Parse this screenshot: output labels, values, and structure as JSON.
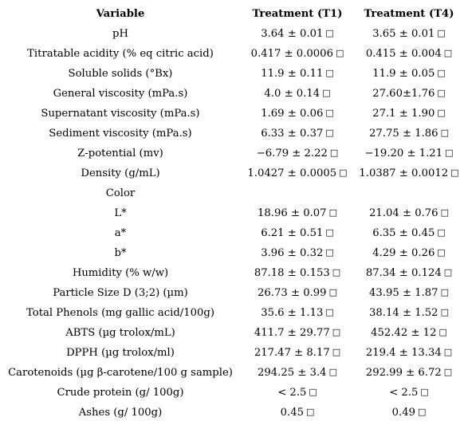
{
  "header": {
    "variable": "Variable",
    "t1": "Treatment (T1)",
    "t4": "Treatment (T4)"
  },
  "missing_glyph": "□",
  "rows": [
    {
      "variable": "pH",
      "t1": "3.64 ± 0.01",
      "t4": "3.65 ± 0.01",
      "t1_glyph": "□",
      "t4_glyph": "□"
    },
    {
      "variable": "Titratable acidity (% eq citric acid)",
      "t1": "0.417 ± 0.0006",
      "t4": "0.415 ± 0.004",
      "t1_glyph": "□",
      "t4_glyph": "□"
    },
    {
      "variable": "Soluble solids (°Bx)",
      "t1": "11.9 ± 0.11",
      "t4": "11.9 ± 0.05",
      "t1_glyph": "□",
      "t4_glyph": "□"
    },
    {
      "variable": "General viscosity (mPa.s)",
      "t1": "4.0 ± 0.14",
      "t4": "27.60±1.76",
      "t1_glyph": "□",
      "t4_glyph": "□"
    },
    {
      "variable": "Supernatant viscosity (mPa.s)",
      "t1": "1.69 ± 0.06",
      "t4": "27.1 ± 1.90",
      "t1_glyph": "□",
      "t4_glyph": "□"
    },
    {
      "variable": "Sediment viscosity (mPa.s)",
      "t1": "6.33 ± 0.37",
      "t4": "27.75 ± 1.86",
      "t1_glyph": "□",
      "t4_glyph": "□"
    },
    {
      "variable": "Z-potential (mv)",
      "t1": "−6.79 ± 2.22",
      "t4": "−19.20 ± 1.21",
      "t1_glyph": "□",
      "t4_glyph": "□"
    },
    {
      "variable": "Density (g/mL)",
      "t1": "1.0427 ± 0.0005",
      "t4": "1.0387 ± 0.0012",
      "t1_glyph": "□",
      "t4_glyph": "□"
    },
    {
      "variable": "Color",
      "t1": "",
      "t4": "",
      "t1_glyph": "",
      "t4_glyph": ""
    },
    {
      "variable": "L*",
      "t1": "18.96 ± 0.07",
      "t4": "21.04 ± 0.76",
      "t1_glyph": "□",
      "t4_glyph": "□"
    },
    {
      "variable": "a*",
      "t1": "6.21 ± 0.51",
      "t4": "6.35 ± 0.45",
      "t1_glyph": "□",
      "t4_glyph": "□"
    },
    {
      "variable": "b*",
      "t1": "3.96 ± 0.32",
      "t4": "4.29 ± 0.26",
      "t1_glyph": "□",
      "t4_glyph": "□"
    },
    {
      "variable": "Humidity (% w/w)",
      "t1": "87.18 ± 0.153",
      "t4": "87.34 ± 0.124",
      "t1_glyph": "□",
      "t4_glyph": "□"
    },
    {
      "variable": "Particle Size D (3;2) (µm)",
      "t1": "26.73 ± 0.99",
      "t4": "43.95 ± 1.87",
      "t1_glyph": "□",
      "t4_glyph": "□"
    },
    {
      "variable": "Total Phenols (mg gallic acid/100g)",
      "t1": "35.6 ± 1.13",
      "t4": "38.14 ± 1.52",
      "t1_glyph": "□",
      "t4_glyph": "□"
    },
    {
      "variable": "ABTS (µg trolox/mL)",
      "t1": "411.7 ± 29.77",
      "t4": "452.42 ± 12",
      "t1_glyph": "□",
      "t4_glyph": "□"
    },
    {
      "variable": "DPPH (µg trolox/ml)",
      "t1": "217.47 ± 8.17",
      "t4": "219.4 ± 13.34",
      "t1_glyph": "□",
      "t4_glyph": "□"
    },
    {
      "variable": "Carotenoids (µg β-carotene/100 g sample)",
      "t1": "294.25 ± 3.4",
      "t4": "292.99 ± 6.72",
      "t1_glyph": "□",
      "t4_glyph": "□"
    },
    {
      "variable": "Crude protein (g/ 100g)",
      "t1": "< 2.5",
      "t4": "< 2.5",
      "t1_glyph": "□",
      "t4_glyph": "□"
    },
    {
      "variable": "Ashes (g/ 100g)",
      "t1": "0.45",
      "t4": "0.49",
      "t1_glyph": "□",
      "t4_glyph": "□"
    }
  ]
}
